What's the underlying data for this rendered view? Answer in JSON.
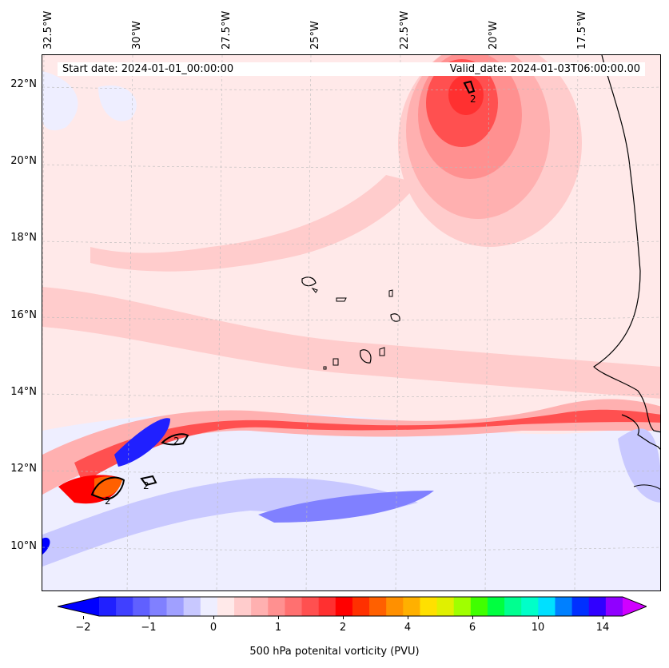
{
  "map": {
    "start_date": "Start date: 2024-01-01_00:00:00",
    "valid_date": "Valid_date: 2024-01-03T06:00:00.00",
    "longitude_labels": [
      "32.5°W",
      "30°W",
      "27.5°W",
      "25°W",
      "22.5°W",
      "20°W",
      "17.5°W"
    ],
    "latitude_labels": [
      "22°N",
      "20°N",
      "18°N",
      "16°N",
      "14°N",
      "12°N",
      "10°N"
    ],
    "contour_label": "2",
    "colorbar": {
      "label": "500 hPa potenital vorticity (PVU)",
      "tick_labels": [
        "−2",
        "−1",
        "0",
        "1",
        "2",
        "4",
        "6",
        "10",
        "14"
      ],
      "colors": [
        "#0000ff",
        "#2020ff",
        "#4040ff",
        "#6060ff",
        "#8080ff",
        "#a0a0ff",
        "#c8c8ff",
        "#eeeeff",
        "#ffe9e9",
        "#ffcccc",
        "#ffb0b0",
        "#ff9090",
        "#ff7070",
        "#ff5050",
        "#ff3030",
        "#ff0000",
        "#ff3000",
        "#ff6000",
        "#ff9000",
        "#ffb000",
        "#ffe000",
        "#e0f000",
        "#a0ff00",
        "#40ff00",
        "#00ff40",
        "#00ff90",
        "#00ffc8",
        "#00e0ff",
        "#0080ff",
        "#0030ff",
        "#3000ff",
        "#9000ff",
        "#d000ff"
      ]
    }
  }
}
